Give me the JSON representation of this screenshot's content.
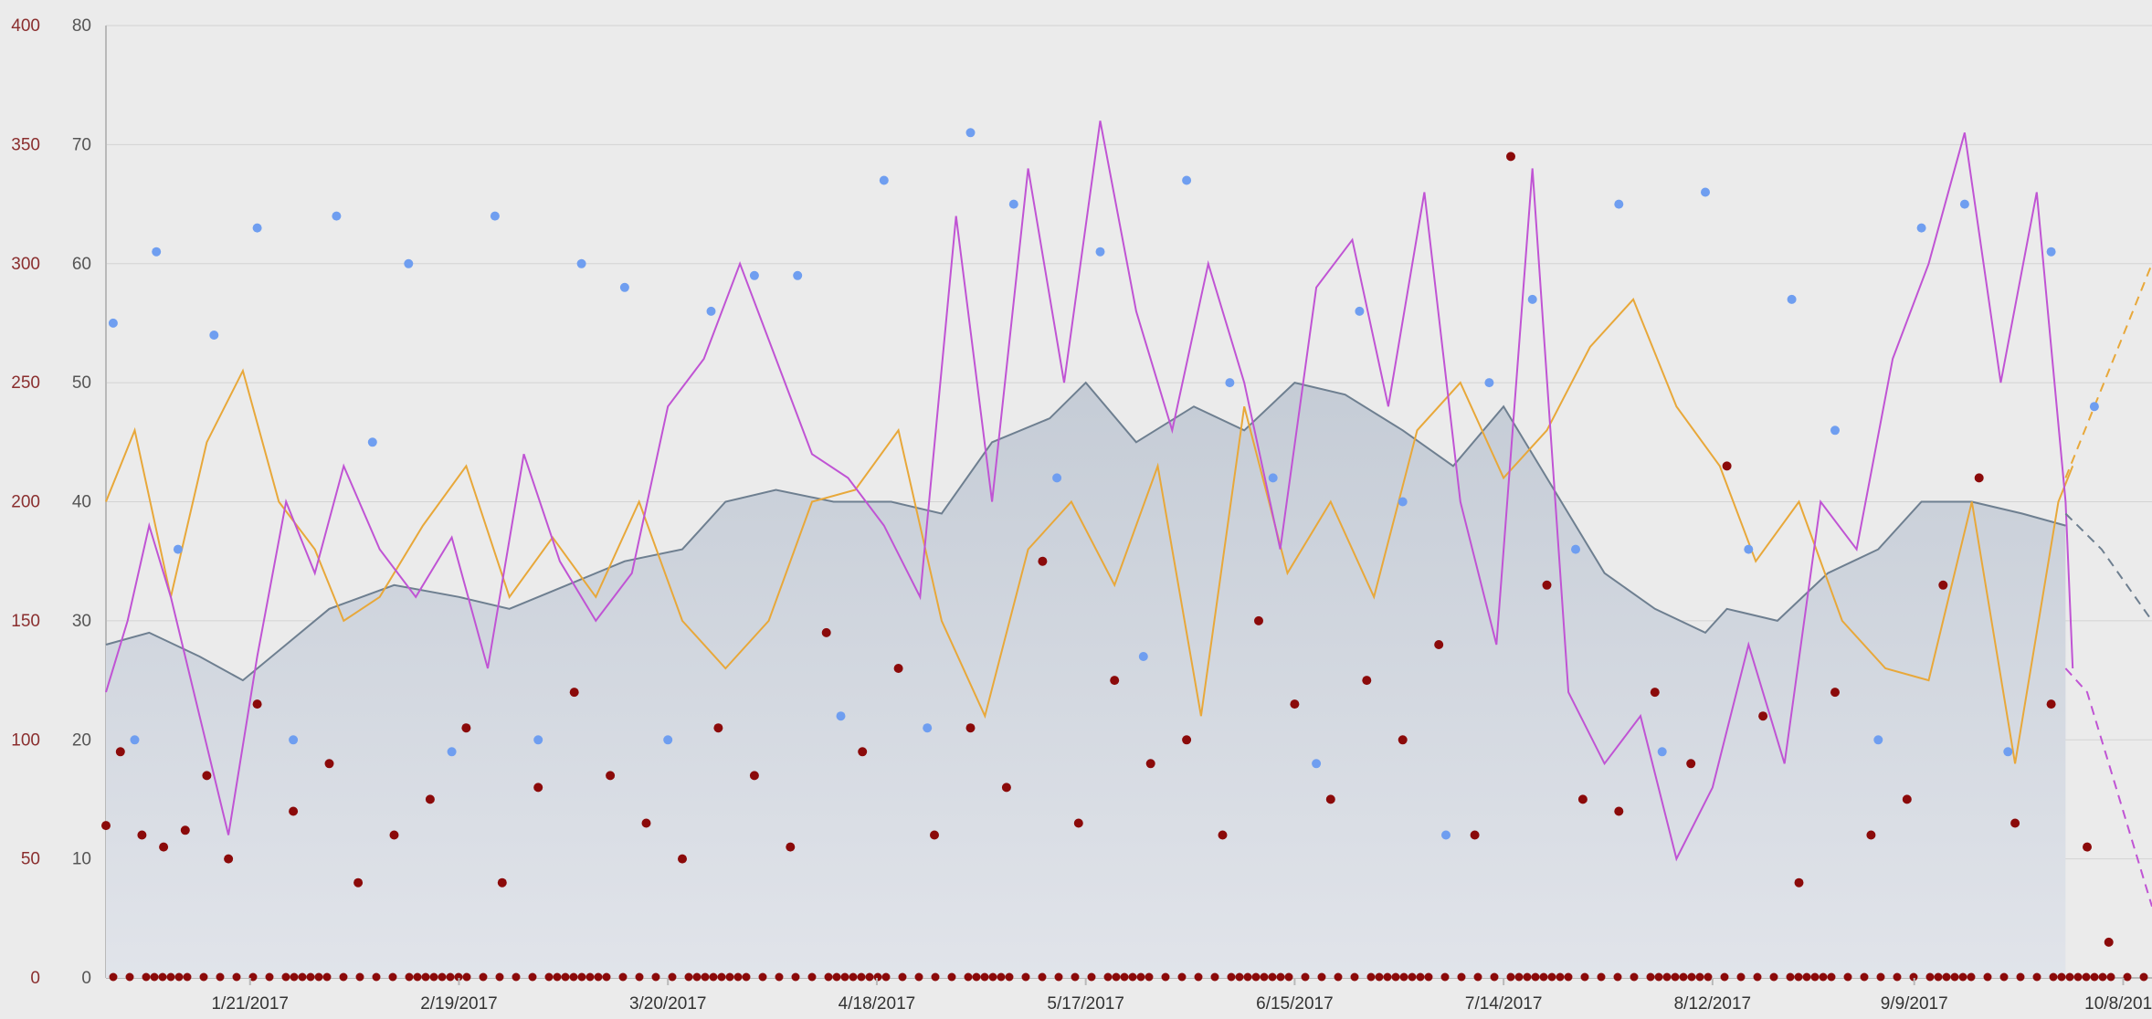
{
  "chart_data": {
    "type": "line",
    "title": "",
    "colors": {
      "area_fill": "#c5ccd6",
      "area_line": "#6e7f90",
      "orange": "#e8a83a",
      "purple": "#c054d4",
      "blue_dots": "#6f9ef0",
      "red_dots": "#8b0a0a",
      "grid": "#d3d3d3",
      "axis": "#b9b9b9"
    },
    "axes": {
      "left": {
        "ticks": [
          "0",
          "50",
          "100",
          "150",
          "200",
          "250",
          "300",
          "350",
          "400"
        ],
        "range": [
          0,
          400
        ]
      },
      "right": {
        "ticks": [
          "0",
          "10",
          "20",
          "30",
          "40",
          "50",
          "60",
          "70",
          "80"
        ],
        "range": [
          0,
          80
        ]
      },
      "x": {
        "range": [
          "2017-01-01",
          "2017-10-12"
        ],
        "tick_labels": [
          "1/21/2017",
          "2/19/2017",
          "3/20/2017",
          "4/18/2017",
          "5/17/2017",
          "6/15/2017",
          "7/14/2017",
          "8/12/2017",
          "9/9/2017",
          "10/8/2017"
        ],
        "tick_dates": [
          "2017-01-21",
          "2017-02-19",
          "2017-03-20",
          "2017-04-18",
          "2017-05-17",
          "2017-06-15",
          "2017-07-14",
          "2017-08-12",
          "2017-09-09",
          "2017-10-08"
        ]
      }
    },
    "grid": true,
    "legend": "none",
    "series": [
      {
        "kind": "area",
        "axis": "right",
        "x": [
          "2017-01-01",
          "2017-01-07",
          "2017-01-14",
          "2017-01-20",
          "2017-01-26",
          "2017-02-01",
          "2017-02-10",
          "2017-02-19",
          "2017-02-26",
          "2017-03-06",
          "2017-03-14",
          "2017-03-22",
          "2017-03-28",
          "2017-04-04",
          "2017-04-12",
          "2017-04-20",
          "2017-04-27",
          "2017-05-04",
          "2017-05-12",
          "2017-05-17",
          "2017-05-24",
          "2017-06-01",
          "2017-06-08",
          "2017-06-15",
          "2017-06-22",
          "2017-06-30",
          "2017-07-07",
          "2017-07-14",
          "2017-07-21",
          "2017-07-28",
          "2017-08-04",
          "2017-08-11",
          "2017-08-14",
          "2017-08-21",
          "2017-08-28",
          "2017-09-04",
          "2017-09-10",
          "2017-09-17",
          "2017-09-24",
          "2017-09-30"
        ],
        "y": [
          28,
          29,
          27,
          25,
          28,
          31,
          33,
          32,
          31,
          33,
          35,
          36,
          40,
          41,
          40,
          40,
          39,
          45,
          47,
          50,
          45,
          48,
          46,
          50,
          49,
          46,
          43,
          48,
          41,
          34,
          31,
          29,
          31,
          30,
          34,
          36,
          40,
          40,
          39,
          38
        ]
      },
      {
        "kind": "line",
        "axis": "left",
        "x": [
          "2017-01-01",
          "2017-01-05",
          "2017-01-10",
          "2017-01-15",
          "2017-01-20",
          "2017-01-25",
          "2017-01-30",
          "2017-02-03",
          "2017-02-08",
          "2017-02-14",
          "2017-02-20",
          "2017-02-26",
          "2017-03-04",
          "2017-03-10",
          "2017-03-16",
          "2017-03-22",
          "2017-03-28",
          "2017-04-03",
          "2017-04-09",
          "2017-04-15",
          "2017-04-21",
          "2017-04-27",
          "2017-05-03",
          "2017-05-09",
          "2017-05-15",
          "2017-05-21",
          "2017-05-27",
          "2017-06-02",
          "2017-06-08",
          "2017-06-14",
          "2017-06-20",
          "2017-06-26",
          "2017-07-02",
          "2017-07-08",
          "2017-07-14",
          "2017-07-20",
          "2017-07-26",
          "2017-08-01",
          "2017-08-07",
          "2017-08-13",
          "2017-08-18",
          "2017-08-24",
          "2017-08-30",
          "2017-09-05",
          "2017-09-11",
          "2017-09-17",
          "2017-09-23",
          "2017-09-29",
          "2017-10-01"
        ],
        "y": [
          200,
          230,
          160,
          225,
          255,
          200,
          180,
          150,
          160,
          190,
          215,
          160,
          185,
          160,
          200,
          150,
          130,
          150,
          200,
          205,
          230,
          150,
          110,
          180,
          200,
          165,
          215,
          110,
          240,
          170,
          200,
          160,
          230,
          250,
          210,
          230,
          265,
          285,
          240,
          215,
          175,
          200,
          150,
          130,
          125,
          200,
          90,
          200,
          215
        ]
      },
      {
        "kind": "line",
        "axis": "left",
        "x": [
          "2017-01-01",
          "2017-01-04",
          "2017-01-07",
          "2017-01-10",
          "2017-01-14",
          "2017-01-18",
          "2017-01-22",
          "2017-01-26",
          "2017-01-30",
          "2017-02-03",
          "2017-02-08",
          "2017-02-13",
          "2017-02-18",
          "2017-02-23",
          "2017-02-28",
          "2017-03-05",
          "2017-03-10",
          "2017-03-15",
          "2017-03-20",
          "2017-03-25",
          "2017-03-30",
          "2017-04-04",
          "2017-04-09",
          "2017-04-14",
          "2017-04-19",
          "2017-04-24",
          "2017-04-29",
          "2017-05-04",
          "2017-05-09",
          "2017-05-14",
          "2017-05-19",
          "2017-05-24",
          "2017-05-29",
          "2017-06-03",
          "2017-06-08",
          "2017-06-13",
          "2017-06-18",
          "2017-06-23",
          "2017-06-28",
          "2017-07-03",
          "2017-07-08",
          "2017-07-13",
          "2017-07-18",
          "2017-07-23",
          "2017-07-28",
          "2017-08-02",
          "2017-08-07",
          "2017-08-12",
          "2017-08-17",
          "2017-08-22",
          "2017-08-27",
          "2017-09-01",
          "2017-09-06",
          "2017-09-11",
          "2017-09-16",
          "2017-09-21",
          "2017-09-26",
          "2017-09-30",
          "2017-10-01"
        ],
        "y": [
          120,
          150,
          190,
          160,
          110,
          60,
          135,
          200,
          170,
          215,
          180,
          160,
          185,
          130,
          220,
          175,
          150,
          170,
          240,
          260,
          300,
          260,
          220,
          210,
          190,
          160,
          320,
          200,
          340,
          250,
          360,
          280,
          230,
          300,
          250,
          180,
          290,
          310,
          240,
          330,
          200,
          140,
          340,
          120,
          90,
          110,
          50,
          80,
          140,
          90,
          200,
          180,
          260,
          300,
          355,
          250,
          330,
          200,
          130
        ]
      },
      {
        "kind": "scatter",
        "axis": "right",
        "x": [
          "2017-01-02",
          "2017-01-05",
          "2017-01-08",
          "2017-01-11",
          "2017-01-16",
          "2017-01-22",
          "2017-01-27",
          "2017-02-02",
          "2017-02-07",
          "2017-02-12",
          "2017-02-18",
          "2017-02-24",
          "2017-03-02",
          "2017-03-08",
          "2017-03-14",
          "2017-03-20",
          "2017-03-26",
          "2017-04-01",
          "2017-04-07",
          "2017-04-13",
          "2017-04-19",
          "2017-04-25",
          "2017-05-01",
          "2017-05-07",
          "2017-05-13",
          "2017-05-19",
          "2017-05-25",
          "2017-05-31",
          "2017-06-06",
          "2017-06-12",
          "2017-06-18",
          "2017-06-24",
          "2017-06-30",
          "2017-07-06",
          "2017-07-12",
          "2017-07-18",
          "2017-07-24",
          "2017-07-30",
          "2017-08-05",
          "2017-08-11",
          "2017-08-17",
          "2017-08-23",
          "2017-08-29",
          "2017-09-04",
          "2017-09-10",
          "2017-09-16",
          "2017-09-22",
          "2017-09-28",
          "2017-10-04"
        ],
        "y": [
          55,
          20,
          61,
          36,
          54,
          63,
          20,
          64,
          45,
          60,
          19,
          64,
          20,
          60,
          58,
          20,
          56,
          59,
          59,
          22,
          67,
          21,
          71,
          65,
          42,
          61,
          27,
          67,
          50,
          42,
          18,
          56,
          40,
          12,
          50,
          57,
          36,
          65,
          19,
          66,
          36,
          57,
          46,
          20,
          63,
          65,
          19,
          61,
          48
        ]
      },
      {
        "kind": "scatter",
        "axis": "left",
        "x": [
          "2017-01-01",
          "2017-01-03",
          "2017-01-06",
          "2017-01-09",
          "2017-01-12",
          "2017-01-15",
          "2017-01-18",
          "2017-01-22",
          "2017-01-27",
          "2017-02-01",
          "2017-02-05",
          "2017-02-10",
          "2017-02-15",
          "2017-02-20",
          "2017-02-25",
          "2017-03-02",
          "2017-03-07",
          "2017-03-12",
          "2017-03-17",
          "2017-03-22",
          "2017-03-27",
          "2017-04-01",
          "2017-04-06",
          "2017-04-11",
          "2017-04-16",
          "2017-04-21",
          "2017-04-26",
          "2017-05-01",
          "2017-05-06",
          "2017-05-11",
          "2017-05-16",
          "2017-05-21",
          "2017-05-26",
          "2017-05-31",
          "2017-06-05",
          "2017-06-10",
          "2017-06-15",
          "2017-06-20",
          "2017-06-25",
          "2017-06-30",
          "2017-07-05",
          "2017-07-10",
          "2017-07-15",
          "2017-07-20",
          "2017-07-25",
          "2017-07-30",
          "2017-08-04",
          "2017-08-09",
          "2017-08-14",
          "2017-08-19",
          "2017-08-24",
          "2017-08-29",
          "2017-09-03",
          "2017-09-08",
          "2017-09-13",
          "2017-09-18",
          "2017-09-23",
          "2017-09-28",
          "2017-10-03",
          "2017-10-06"
        ],
        "y": [
          64,
          95,
          60,
          55,
          62,
          85,
          50,
          115,
          70,
          90,
          40,
          60,
          75,
          105,
          40,
          80,
          120,
          85,
          65,
          50,
          105,
          85,
          55,
          145,
          95,
          130,
          60,
          105,
          80,
          175,
          65,
          125,
          90,
          100,
          60,
          150,
          115,
          75,
          125,
          100,
          140,
          60,
          345,
          165,
          75,
          70,
          120,
          90,
          215,
          110,
          40,
          120,
          60,
          75,
          165,
          210,
          65,
          115,
          55,
          15
        ]
      },
      {
        "kind": "baseline-dots",
        "axis": "left",
        "y": 0,
        "note": "dense row of dark red dots along 0"
      },
      {
        "kind": "projection",
        "style": "dashed",
        "axis": "right",
        "x": [
          "2017-09-30",
          "2017-10-05",
          "2017-10-12"
        ],
        "y": [
          39,
          36,
          30
        ]
      },
      {
        "kind": "projection",
        "style": "dashed",
        "axis": "left",
        "x": [
          "2017-09-30",
          "2017-10-04",
          "2017-10-08",
          "2017-10-12"
        ],
        "y": [
          210,
          240,
          270,
          300
        ]
      },
      {
        "kind": "projection",
        "style": "dashed",
        "axis": "left",
        "x": [
          "2017-09-30",
          "2017-10-03",
          "2017-10-07",
          "2017-10-12"
        ],
        "y": [
          130,
          120,
          80,
          30
        ]
      }
    ]
  }
}
